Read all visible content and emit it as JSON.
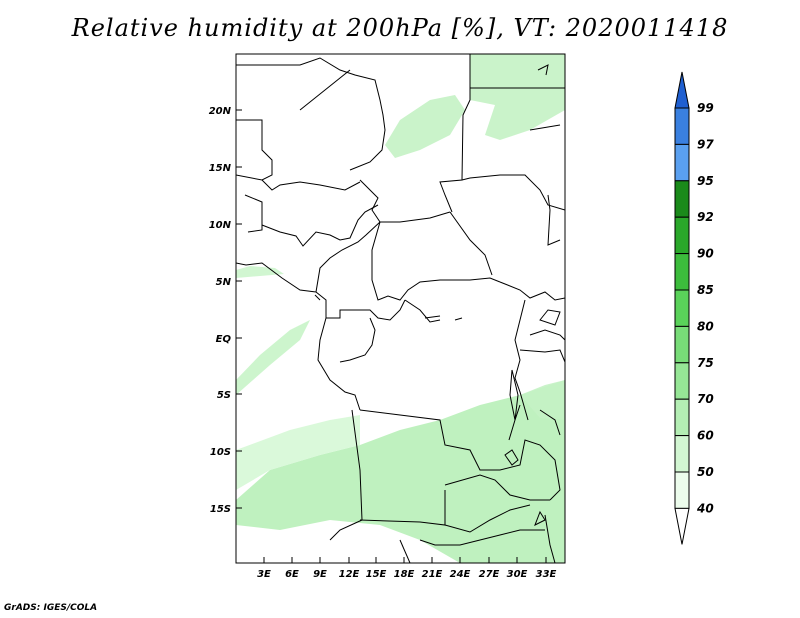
{
  "title": "Relative humidity at 200hPa [%], VT: 2020011418",
  "credit": "GrADS: IGES/COLA",
  "map": {
    "lat_labels": [
      "20N",
      "15N",
      "10N",
      "5N",
      "EQ",
      "5S",
      "10S",
      "15S"
    ],
    "lon_labels": [
      "3E",
      "6E",
      "9E",
      "12E",
      "15E",
      "18E",
      "21E",
      "24E",
      "27E",
      "30E",
      "33E"
    ]
  },
  "colorbar": {
    "levels": [
      "99",
      "97",
      "95",
      "92",
      "90",
      "85",
      "80",
      "75",
      "70",
      "60",
      "50",
      "40"
    ],
    "colors": [
      "#1f5fd0",
      "#3a80e0",
      "#5aa0f0",
      "#1a8a1a",
      "#2aa82a",
      "#3cbc3c",
      "#5ad25a",
      "#78dc78",
      "#96e696",
      "#b4eeb4",
      "#d2f6d2",
      "#ecfcec"
    ]
  },
  "colors": {
    "humidity_fill": "#aaeeaa",
    "humidity_fill_light": "#d0f6d0",
    "border": "#000000"
  }
}
